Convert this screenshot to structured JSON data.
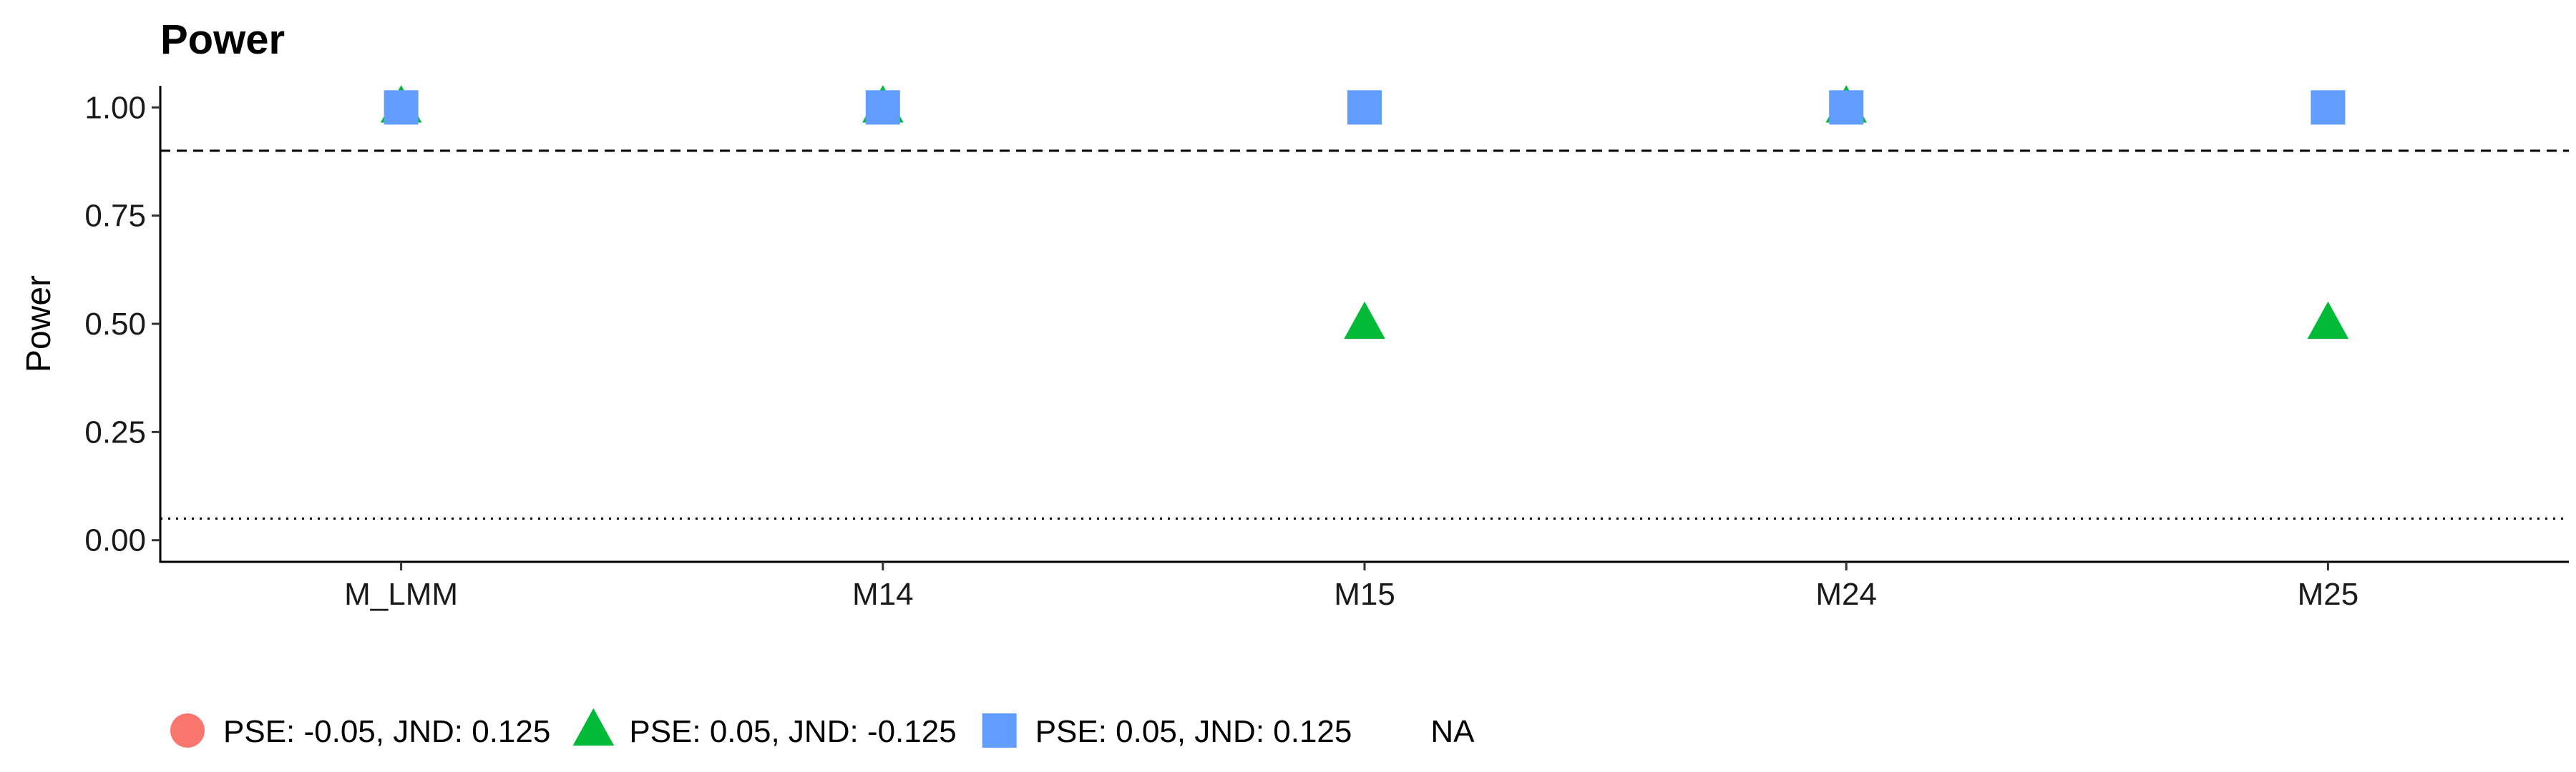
{
  "chart_data": {
    "type": "scatter",
    "title": "Power",
    "xlabel": "",
    "ylabel": "Power",
    "categories": [
      "M_LMM",
      "M14",
      "M15",
      "M24",
      "M25"
    ],
    "ylim": [
      -0.05,
      1.05
    ],
    "yticks": [
      0.0,
      0.25,
      0.5,
      0.75,
      1.0
    ],
    "ytick_labels": [
      "0.00",
      "0.25",
      "0.50",
      "0.75",
      "1.00"
    ],
    "reference_lines": [
      {
        "y": 0.9,
        "style": "dashed"
      },
      {
        "y": 0.05,
        "style": "dotted"
      }
    ],
    "grid": false,
    "legend_position": "bottom",
    "series": [
      {
        "name": "PSE: -0.05, JND: 0.125",
        "shape": "circle",
        "color": "#F8766D",
        "values": [
          1.0,
          1.0,
          null,
          1.0,
          null
        ]
      },
      {
        "name": "PSE: 0.05, JND: -0.125",
        "shape": "triangle",
        "color": "#00BA38",
        "values": [
          1.0,
          1.0,
          0.5,
          1.0,
          0.5
        ]
      },
      {
        "name": "PSE: 0.05, JND: 0.125",
        "shape": "square",
        "color": "#619CFF",
        "values": [
          1.0,
          1.0,
          1.0,
          1.0,
          1.0
        ]
      },
      {
        "name": "NA",
        "shape": "none",
        "color": "",
        "values": []
      }
    ]
  }
}
